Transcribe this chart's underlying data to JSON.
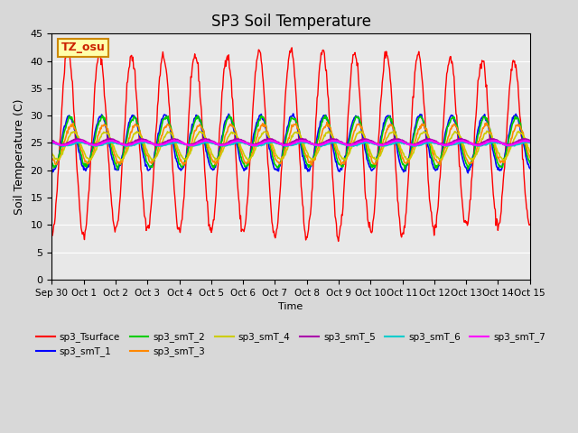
{
  "title": "SP3 Soil Temperature",
  "ylabel": "Soil Temperature (C)",
  "xlabel": "Time",
  "annotation_text": "TZ_osu",
  "ylim": [
    0,
    45
  ],
  "fig_facecolor": "#d8d8d8",
  "ax_facecolor": "#e8e8e8",
  "series_colors": {
    "sp3_Tsurface": "#ff0000",
    "sp3_smT_1": "#0000ff",
    "sp3_smT_2": "#00cc00",
    "sp3_smT_3": "#ff8800",
    "sp3_smT_4": "#cccc00",
    "sp3_smT_5": "#aa00aa",
    "sp3_smT_6": "#00cccc",
    "sp3_smT_7": "#ff00ff"
  },
  "tick_labels": [
    "Sep 30",
    "Oct 1",
    "Oct 2",
    "Oct 3",
    "Oct 4",
    "Oct 5",
    "Oct 6",
    "Oct 7",
    "Oct 8",
    "Oct 9",
    "Oct 10",
    "Oct 11",
    "Oct 12",
    "Oct 13",
    "Oct 14",
    "Oct 15"
  ],
  "yticks": [
    0,
    5,
    10,
    15,
    20,
    25,
    30,
    35,
    40,
    45
  ],
  "n_days": 15,
  "points_per_day": 48,
  "day_amp_mod": [
    1.0,
    1.0,
    0.92,
    0.92,
    0.94,
    0.94,
    0.95,
    1.0,
    1.0,
    1.0,
    0.96,
    0.98,
    0.93,
    0.9,
    0.88,
    0.88
  ]
}
